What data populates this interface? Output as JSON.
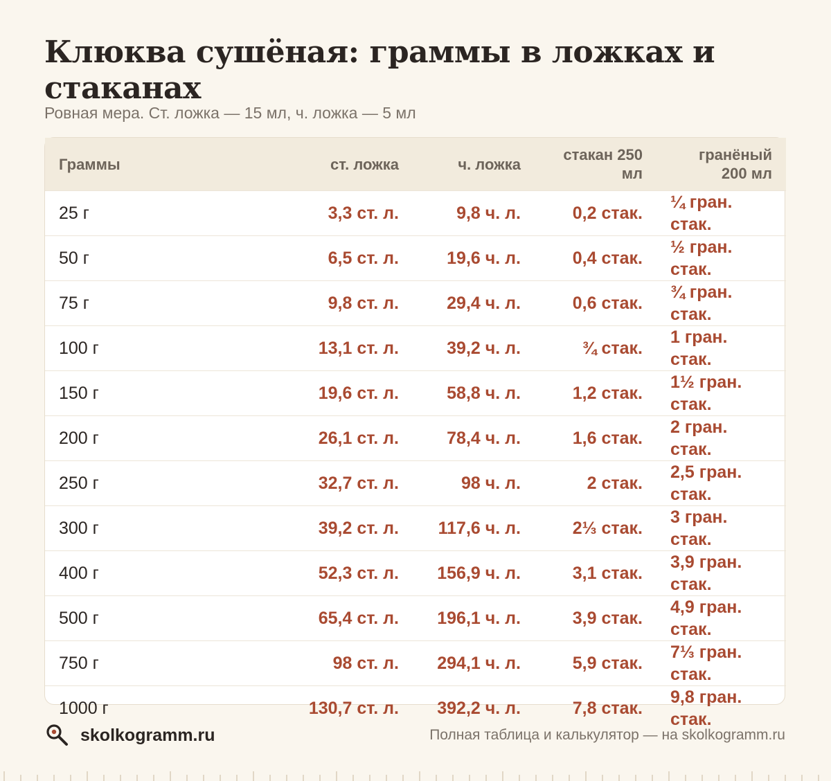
{
  "title": "Клюква сушёная: граммы в ложках и стаканах",
  "subtitle": "Ровная мера. Ст. ложка — 15 мл, ч. ложка — 5 мл",
  "table": {
    "headers": [
      "Граммы",
      "ст. ложка",
      "ч. ложка",
      "стакан 250 мл",
      "гранёный 200 мл"
    ],
    "rows": [
      [
        "25 г",
        "3,3 ст. л.",
        "9,8 ч. л.",
        "0,2 стак.",
        "¼ гран. стак."
      ],
      [
        "50 г",
        "6,5 ст. л.",
        "19,6 ч. л.",
        "0,4 стак.",
        "½ гран. стак."
      ],
      [
        "75 г",
        "9,8 ст. л.",
        "29,4 ч. л.",
        "0,6 стак.",
        "¾ гран. стак."
      ],
      [
        "100 г",
        "13,1 ст. л.",
        "39,2 ч. л.",
        "¾ стак.",
        "1 гран. стак."
      ],
      [
        "150 г",
        "19,6 ст. л.",
        "58,8 ч. л.",
        "1,2 стак.",
        "1½ гран. стак."
      ],
      [
        "200 г",
        "26,1 ст. л.",
        "78,4 ч. л.",
        "1,6 стак.",
        "2 гран. стак."
      ],
      [
        "250 г",
        "32,7 ст. л.",
        "98 ч. л.",
        "2 стак.",
        "2,5 гран. стак."
      ],
      [
        "300 г",
        "39,2 ст. л.",
        "117,6 ч. л.",
        "2⅓ стак.",
        "3 гран. стак."
      ],
      [
        "400 г",
        "52,3 ст. л.",
        "156,9 ч. л.",
        "3,1 стак.",
        "3,9 гран. стак."
      ],
      [
        "500 г",
        "65,4 ст. л.",
        "196,1 ч. л.",
        "3,9 стак.",
        "4,9 гран. стак."
      ],
      [
        "750 г",
        "98 ст. л.",
        "294,1 ч. л.",
        "5,9 стак.",
        "7⅓ гран. стак."
      ],
      [
        "1000 г",
        "130,7 ст. л.",
        "392,2 ч. л.",
        "7,8 стак.",
        "9,8 гран. стак."
      ]
    ]
  },
  "footer": {
    "brand": "skolkogramm.ru",
    "note": "Полная таблица и калькулятор — на skolkogramm.ru",
    "icon": "magnifier-icon"
  },
  "colors": {
    "background": "#faf6ee",
    "accent": "#a94a31",
    "header_bg": "#f2ebdd"
  }
}
